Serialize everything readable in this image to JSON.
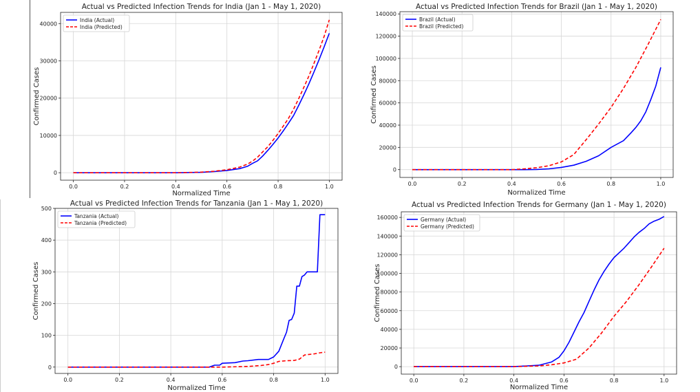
{
  "chart_data": [
    {
      "type": "line",
      "title": "Actual vs Predicted Infection Trends for India (Jan 1 - May 1, 2020)",
      "xlabel": "Normalized Time",
      "ylabel": "Confirmed Cases",
      "xlim": [
        -0.05,
        1.05
      ],
      "ylim": [
        -2000,
        43000
      ],
      "xticks": [
        0.0,
        0.2,
        0.4,
        0.6,
        0.8,
        1.0
      ],
      "xtick_labels": [
        "0.0",
        "0.2",
        "0.4",
        "0.6",
        "0.8",
        "1.0"
      ],
      "yticks": [
        0,
        10000,
        20000,
        30000,
        40000
      ],
      "ytick_labels": [
        "0",
        "10000",
        "20000",
        "30000",
        "40000"
      ],
      "grid": true,
      "legend": "top-left",
      "series": [
        {
          "name": "India (Actual)",
          "color": "#0000ff",
          "dashed": false,
          "x": [
            0,
            0.4,
            0.5,
            0.55,
            0.6,
            0.65,
            0.68,
            0.7,
            0.72,
            0.74,
            0.76,
            0.78,
            0.8,
            0.82,
            0.84,
            0.86,
            0.88,
            0.9,
            0.92,
            0.94,
            0.96,
            0.98,
            1.0
          ],
          "y": [
            0,
            0,
            100,
            300,
            600,
            1100,
            1700,
            2500,
            3200,
            4500,
            6000,
            7600,
            9300,
            11200,
            13200,
            15300,
            18000,
            20800,
            23800,
            27000,
            30300,
            33800,
            37400
          ]
        },
        {
          "name": "India (Predicted)",
          "color": "#ff0000",
          "dashed": true,
          "x": [
            0,
            0.4,
            0.5,
            0.55,
            0.6,
            0.65,
            0.68,
            0.7,
            0.72,
            0.74,
            0.76,
            0.78,
            0.8,
            0.82,
            0.84,
            0.86,
            0.88,
            0.9,
            0.92,
            0.94,
            0.96,
            0.98,
            1.0
          ],
          "y": [
            0,
            0,
            150,
            400,
            800,
            1500,
            2300,
            3100,
            4200,
            5600,
            7000,
            8700,
            10500,
            12500,
            14500,
            17000,
            19800,
            22800,
            25900,
            29300,
            32800,
            36600,
            41000
          ]
        }
      ]
    },
    {
      "type": "line",
      "title": "Actual vs Predicted Infection Trends for Brazil (Jan 1 - May 1, 2020)",
      "xlabel": "Normalized Time",
      "ylabel": "Confirmed Cases",
      "xlim": [
        -0.05,
        1.05
      ],
      "ylim": [
        -7000,
        142000
      ],
      "xticks": [
        0.0,
        0.2,
        0.4,
        0.6,
        0.8,
        1.0
      ],
      "xtick_labels": [
        "0.0",
        "0.2",
        "0.4",
        "0.6",
        "0.8",
        "1.0"
      ],
      "yticks": [
        0,
        20000,
        40000,
        60000,
        80000,
        100000,
        120000,
        140000
      ],
      "ytick_labels": [
        "0",
        "20000",
        "40000",
        "60000",
        "80000",
        "100000",
        "120000",
        "140000"
      ],
      "grid": true,
      "legend": "top-left",
      "series": [
        {
          "name": "Brazil (Actual)",
          "color": "#0000ff",
          "dashed": false,
          "x": [
            0,
            0.45,
            0.5,
            0.55,
            0.6,
            0.65,
            0.7,
            0.75,
            0.8,
            0.85,
            0.88,
            0.9,
            0.92,
            0.94,
            0.96,
            0.98,
            1.0
          ],
          "y": [
            0,
            0,
            200,
            700,
            2000,
            4000,
            7500,
            12500,
            20000,
            26000,
            33000,
            38000,
            44000,
            52000,
            63000,
            75000,
            92000
          ]
        },
        {
          "name": "Brazil (Predicted)",
          "color": "#ff0000",
          "dashed": true,
          "x": [
            0,
            0.4,
            0.45,
            0.5,
            0.55,
            0.6,
            0.65,
            0.7,
            0.75,
            0.8,
            0.85,
            0.9,
            0.95,
            1.0
          ],
          "y": [
            0,
            0,
            700,
            1700,
            3500,
            7000,
            13500,
            27000,
            41000,
            56000,
            73000,
            92000,
            113000,
            135000
          ]
        }
      ]
    },
    {
      "type": "line",
      "title": "Actual vs Predicted Infection Trends for Tanzania (Jan 1 - May 1, 2020)",
      "xlabel": "Normalized Time",
      "ylabel": "Confirmed Cases",
      "xlim": [
        -0.05,
        1.05
      ],
      "ylim": [
        -20,
        500
      ],
      "xticks": [
        0.0,
        0.2,
        0.4,
        0.6,
        0.8,
        1.0
      ],
      "xtick_labels": [
        "0.0",
        "0.2",
        "0.4",
        "0.6",
        "0.8",
        "1.0"
      ],
      "yticks": [
        0,
        100,
        200,
        300,
        400,
        500
      ],
      "ytick_labels": [
        "0",
        "100",
        "200",
        "300",
        "400",
        "500"
      ],
      "grid": true,
      "legend": "top-left",
      "series": [
        {
          "name": "Tanzania (Actual)",
          "color": "#0000ff",
          "dashed": false,
          "x": [
            0,
            0.55,
            0.57,
            0.59,
            0.6,
            0.65,
            0.68,
            0.7,
            0.74,
            0.78,
            0.8,
            0.82,
            0.84,
            0.85,
            0.86,
            0.87,
            0.88,
            0.89,
            0.9,
            0.91,
            0.92,
            0.93,
            0.95,
            0.97,
            0.98,
            1.0
          ],
          "y": [
            0,
            0,
            6,
            6,
            12,
            14,
            19,
            20,
            24,
            24,
            32,
            50,
            90,
            110,
            147,
            150,
            170,
            255,
            255,
            285,
            290,
            300,
            300,
            300,
            480,
            480
          ]
        },
        {
          "name": "Tanzania (Predicted)",
          "color": "#ff0000",
          "dashed": true,
          "x": [
            0,
            0.6,
            0.7,
            0.75,
            0.78,
            0.8,
            0.82,
            0.85,
            0.88,
            0.9,
            0.92,
            0.94,
            0.96,
            0.98,
            1.0
          ],
          "y": [
            0,
            0,
            2,
            5,
            8,
            12,
            18,
            20,
            21,
            25,
            38,
            40,
            42,
            45,
            47
          ]
        }
      ]
    },
    {
      "type": "line",
      "title": "Actual vs Predicted Infection Trends for Germany (Jan 1 - May 1, 2020)",
      "xlabel": "Normalized Time",
      "ylabel": "Confirmed Cases",
      "xlim": [
        -0.05,
        1.05
      ],
      "ylim": [
        -8000,
        166000
      ],
      "xticks": [
        0.0,
        0.2,
        0.4,
        0.6,
        0.8,
        1.0
      ],
      "xtick_labels": [
        "0.0",
        "0.2",
        "0.4",
        "0.6",
        "0.8",
        "1.0"
      ],
      "yticks": [
        0,
        20000,
        40000,
        60000,
        80000,
        100000,
        120000,
        140000,
        160000
      ],
      "ytick_labels": [
        "0",
        "20000",
        "40000",
        "60000",
        "80000",
        "100000",
        "120000",
        "140000",
        "160000"
      ],
      "grid": true,
      "legend": "top-left",
      "series": [
        {
          "name": "Germany (Actual)",
          "color": "#0000ff",
          "dashed": false,
          "x": [
            0,
            0.4,
            0.5,
            0.55,
            0.58,
            0.6,
            0.62,
            0.64,
            0.66,
            0.68,
            0.7,
            0.72,
            0.74,
            0.76,
            0.78,
            0.8,
            0.82,
            0.84,
            0.86,
            0.88,
            0.9,
            0.92,
            0.94,
            0.96,
            0.98,
            1.0
          ],
          "y": [
            0,
            0,
            1500,
            5000,
            10000,
            17000,
            26000,
            37000,
            48000,
            58000,
            70000,
            82000,
            93000,
            102000,
            110000,
            117000,
            122000,
            127000,
            133000,
            139000,
            144000,
            148000,
            153000,
            156000,
            158000,
            161000
          ]
        },
        {
          "name": "Germany (Predicted)",
          "color": "#ff0000",
          "dashed": true,
          "x": [
            0,
            0.4,
            0.5,
            0.55,
            0.6,
            0.65,
            0.7,
            0.75,
            0.8,
            0.85,
            0.9,
            0.95,
            1.0
          ],
          "y": [
            0,
            0,
            800,
            2000,
            4000,
            8000,
            20000,
            36000,
            54000,
            70000,
            88000,
            107000,
            127000
          ]
        }
      ]
    }
  ]
}
